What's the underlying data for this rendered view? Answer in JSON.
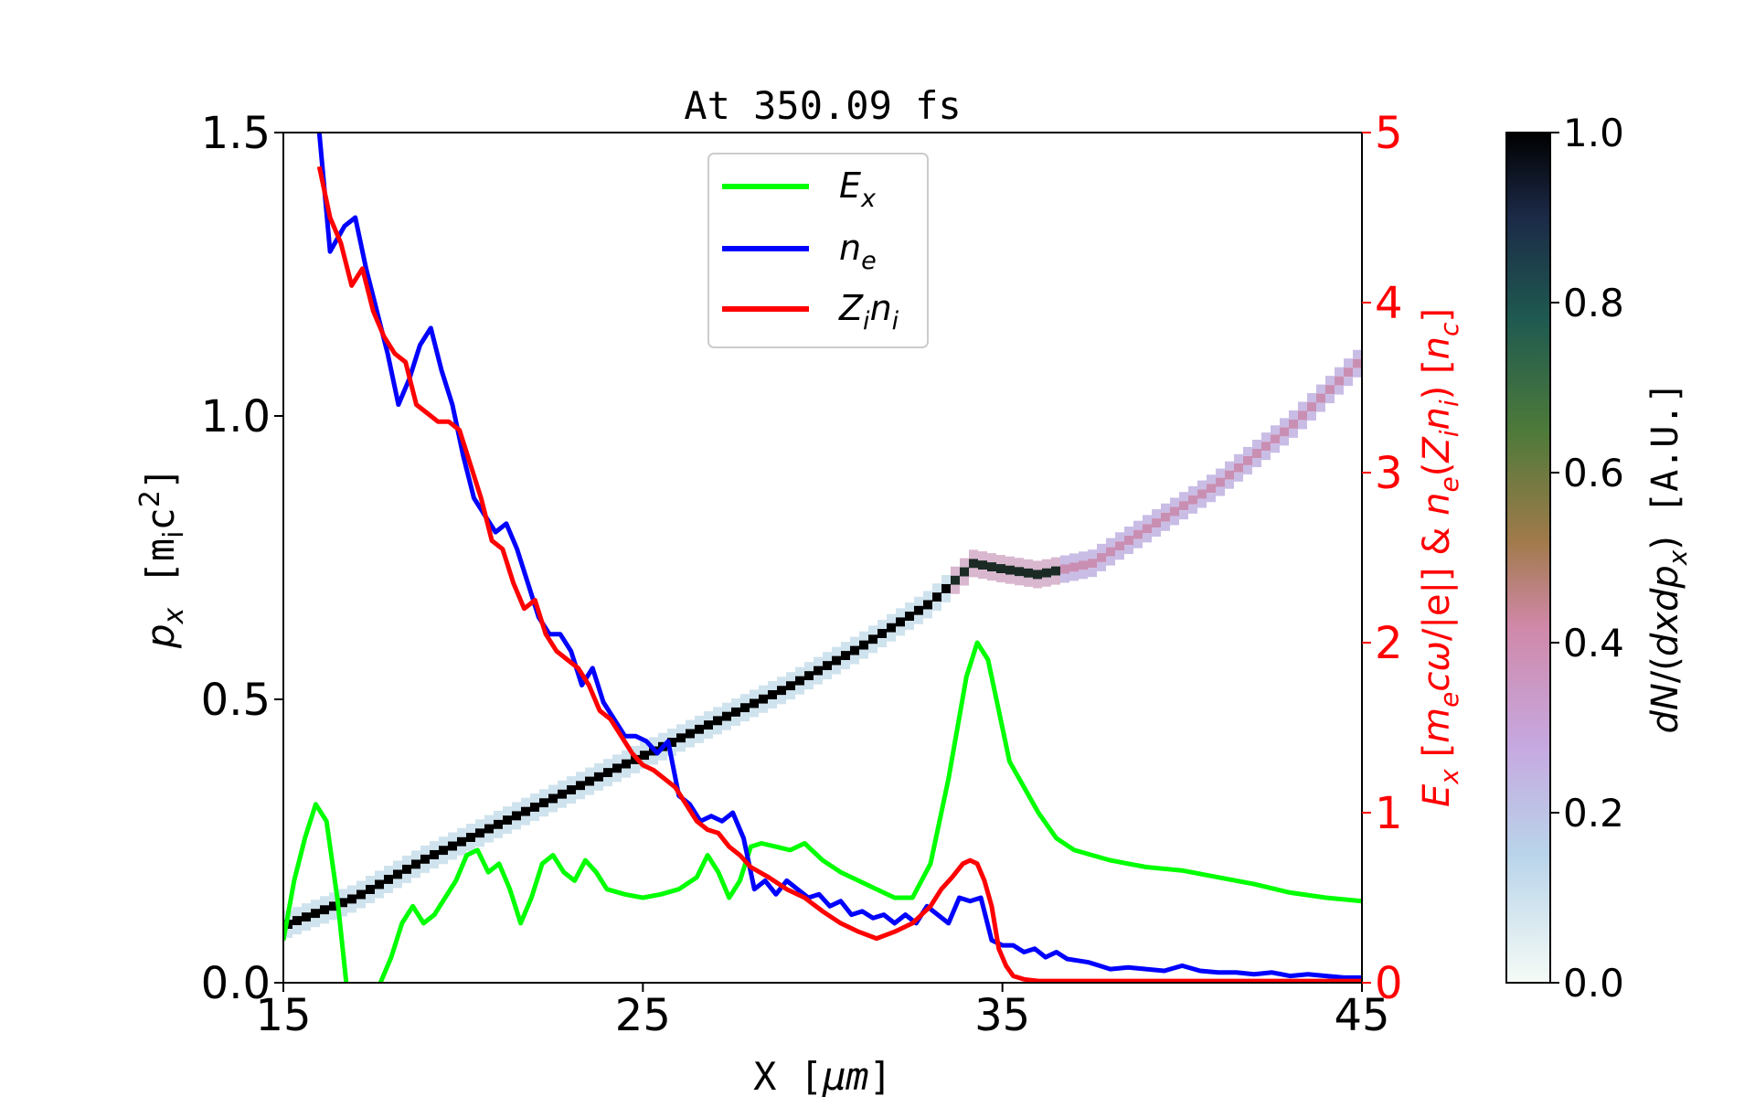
{
  "chart_data": {
    "type": "line",
    "title": "At 350.09 fs",
    "xlabel": "X [μm]",
    "ylabel": "p_x [m_ic^2]",
    "y2label": "E_x [m_ecω/|e|] & n_e(Z_in_i) [n_c]",
    "colorbar_label": "dN/(dxdp_x) [A.U.]",
    "xlim": [
      15,
      45
    ],
    "ylim": [
      0,
      1.5
    ],
    "y2lim": [
      0,
      5
    ],
    "colorbar_lim": [
      0,
      1
    ],
    "x_ticks": [
      "15",
      "25",
      "35",
      "45"
    ],
    "y_ticks": [
      "0.0",
      "0.5",
      "1.0",
      "1.5"
    ],
    "y2_ticks": [
      "0",
      "1",
      "2",
      "3",
      "4",
      "5"
    ],
    "colorbar_ticks": [
      "0.0",
      "0.2",
      "0.4",
      "0.6",
      "0.8",
      "1.0"
    ],
    "grid": false,
    "legend_position": "top-center",
    "right_axis_color": "#ff0000",
    "legend": [
      {
        "label_main": "E",
        "label_sub": "x",
        "color": "#00ff00"
      },
      {
        "label_main": "n",
        "label_sub": "e",
        "color": "#0000ff"
      },
      {
        "label_main": "Z",
        "label_sub": "i",
        "label_main2": "n",
        "label_sub2": "i",
        "color": "#ff0000"
      }
    ],
    "series": [
      {
        "name": "E_x",
        "axis": "right",
        "color": "#00ff00",
        "x": [
          15.0,
          15.3,
          15.6,
          15.9,
          16.2,
          16.5,
          16.8,
          17.1,
          17.4,
          17.7,
          18.0,
          18.3,
          18.6,
          18.9,
          19.2,
          19.5,
          19.8,
          20.1,
          20.4,
          20.7,
          21.0,
          21.3,
          21.6,
          21.9,
          22.2,
          22.5,
          22.8,
          23.1,
          23.4,
          23.7,
          24.0,
          24.5,
          25.0,
          25.5,
          26.0,
          26.5,
          26.8,
          27.1,
          27.4,
          27.7,
          28.0,
          28.3,
          28.7,
          29.1,
          29.5,
          30.0,
          30.5,
          31.0,
          31.5,
          32.0,
          32.5,
          33.0,
          33.5,
          34.0,
          34.3,
          34.6,
          34.9,
          35.2,
          35.6,
          36.0,
          36.5,
          37.0,
          37.5,
          38.0,
          38.5,
          39.0,
          40.0,
          41.0,
          42.0,
          43.0,
          44.0,
          45.0
        ],
        "values": [
          0.25,
          0.6,
          0.85,
          1.05,
          0.95,
          0.5,
          -0.1,
          -0.4,
          -0.2,
          0.0,
          0.15,
          0.35,
          0.45,
          0.35,
          0.4,
          0.5,
          0.6,
          0.75,
          0.78,
          0.65,
          0.7,
          0.55,
          0.35,
          0.5,
          0.7,
          0.75,
          0.65,
          0.6,
          0.72,
          0.65,
          0.55,
          0.52,
          0.5,
          0.52,
          0.55,
          0.62,
          0.75,
          0.65,
          0.5,
          0.6,
          0.8,
          0.82,
          0.8,
          0.78,
          0.82,
          0.72,
          0.65,
          0.6,
          0.55,
          0.5,
          0.5,
          0.7,
          1.2,
          1.8,
          2.0,
          1.9,
          1.6,
          1.3,
          1.15,
          1.0,
          0.85,
          0.78,
          0.75,
          0.72,
          0.7,
          0.68,
          0.66,
          0.62,
          0.58,
          0.53,
          0.5,
          0.48
        ]
      },
      {
        "name": "n_e",
        "axis": "right",
        "color": "#0000ff",
        "x": [
          16.0,
          16.3,
          16.7,
          17.0,
          17.3,
          17.6,
          17.9,
          18.2,
          18.5,
          18.8,
          19.1,
          19.4,
          19.7,
          20.0,
          20.3,
          20.6,
          20.9,
          21.2,
          21.5,
          21.8,
          22.1,
          22.4,
          22.7,
          23.0,
          23.3,
          23.6,
          23.9,
          24.2,
          24.5,
          24.8,
          25.1,
          25.4,
          25.7,
          26.0,
          26.3,
          26.6,
          26.9,
          27.2,
          27.5,
          27.8,
          28.1,
          28.4,
          28.7,
          29.0,
          29.3,
          29.6,
          29.9,
          30.2,
          30.5,
          30.8,
          31.1,
          31.4,
          31.7,
          32.0,
          32.3,
          32.6,
          32.9,
          33.2,
          33.5,
          33.8,
          34.1,
          34.4,
          34.7,
          35.0,
          35.3,
          35.6,
          35.9,
          36.2,
          36.5,
          36.8,
          37.1,
          37.4,
          37.7,
          38.0,
          38.5,
          39.0,
          39.5,
          40.0,
          40.5,
          41.0,
          41.5,
          42.0,
          42.5,
          43.0,
          43.5,
          44.0,
          44.5,
          45.0
        ],
        "values": [
          5.0,
          4.3,
          4.45,
          4.5,
          4.2,
          3.95,
          3.7,
          3.4,
          3.55,
          3.75,
          3.85,
          3.6,
          3.4,
          3.1,
          2.85,
          2.75,
          2.65,
          2.7,
          2.55,
          2.35,
          2.15,
          2.05,
          2.05,
          1.95,
          1.75,
          1.85,
          1.65,
          1.55,
          1.45,
          1.45,
          1.42,
          1.35,
          1.42,
          1.1,
          1.05,
          0.95,
          0.98,
          0.95,
          1.0,
          0.85,
          0.55,
          0.6,
          0.52,
          0.6,
          0.55,
          0.5,
          0.52,
          0.45,
          0.48,
          0.4,
          0.42,
          0.38,
          0.4,
          0.35,
          0.4,
          0.35,
          0.45,
          0.4,
          0.35,
          0.5,
          0.48,
          0.5,
          0.25,
          0.22,
          0.22,
          0.18,
          0.2,
          0.15,
          0.18,
          0.14,
          0.13,
          0.12,
          0.1,
          0.08,
          0.09,
          0.08,
          0.07,
          0.1,
          0.07,
          0.06,
          0.06,
          0.05,
          0.06,
          0.04,
          0.05,
          0.04,
          0.03,
          0.03
        ]
      },
      {
        "name": "Z_i n_i",
        "axis": "right",
        "color": "#ff0000",
        "x": [
          16.0,
          16.3,
          16.6,
          16.9,
          17.2,
          17.5,
          17.8,
          18.1,
          18.4,
          18.7,
          19.0,
          19.3,
          19.6,
          19.9,
          20.2,
          20.5,
          20.8,
          21.1,
          21.4,
          21.7,
          22.0,
          22.3,
          22.6,
          22.9,
          23.2,
          23.5,
          23.8,
          24.1,
          24.4,
          24.7,
          25.0,
          25.3,
          25.6,
          25.9,
          26.2,
          26.5,
          26.8,
          27.1,
          27.4,
          27.7,
          28.0,
          28.5,
          29.0,
          29.5,
          30.0,
          30.5,
          31.0,
          31.5,
          32.0,
          32.5,
          33.0,
          33.3,
          33.6,
          33.9,
          34.1,
          34.3,
          34.5,
          34.7,
          34.9,
          35.1,
          35.3,
          35.6,
          36.0,
          37.0,
          38.0,
          39.0,
          40.0,
          41.0,
          42.0,
          43.0,
          44.0,
          45.0
        ],
        "values": [
          4.8,
          4.5,
          4.35,
          4.1,
          4.2,
          3.95,
          3.8,
          3.7,
          3.65,
          3.4,
          3.35,
          3.3,
          3.3,
          3.25,
          3.05,
          2.85,
          2.6,
          2.55,
          2.35,
          2.2,
          2.25,
          2.05,
          1.95,
          1.9,
          1.85,
          1.75,
          1.6,
          1.55,
          1.45,
          1.35,
          1.28,
          1.25,
          1.2,
          1.15,
          1.05,
          0.95,
          0.9,
          0.88,
          0.8,
          0.75,
          0.68,
          0.62,
          0.55,
          0.5,
          0.42,
          0.35,
          0.3,
          0.26,
          0.3,
          0.35,
          0.45,
          0.55,
          0.62,
          0.7,
          0.72,
          0.7,
          0.6,
          0.45,
          0.2,
          0.1,
          0.04,
          0.02,
          0.01,
          0.01,
          0.01,
          0.01,
          0.01,
          0.01,
          0.01,
          0.01,
          0.01,
          0.01
        ]
      },
      {
        "name": "phase space",
        "axis": "left",
        "color": "#000000",
        "x": [
          15.0,
          17.0,
          19.0,
          21.0,
          23.0,
          25.0,
          27.0,
          29.0,
          31.0,
          33.0,
          34.2,
          35.0,
          36.0,
          37.5,
          39.0,
          41.0,
          43.0,
          45.0
        ],
        "values": [
          0.1,
          0.15,
          0.22,
          0.28,
          0.34,
          0.4,
          0.46,
          0.52,
          0.59,
          0.67,
          0.74,
          0.73,
          0.72,
          0.74,
          0.8,
          0.88,
          0.98,
          1.1
        ]
      }
    ]
  }
}
